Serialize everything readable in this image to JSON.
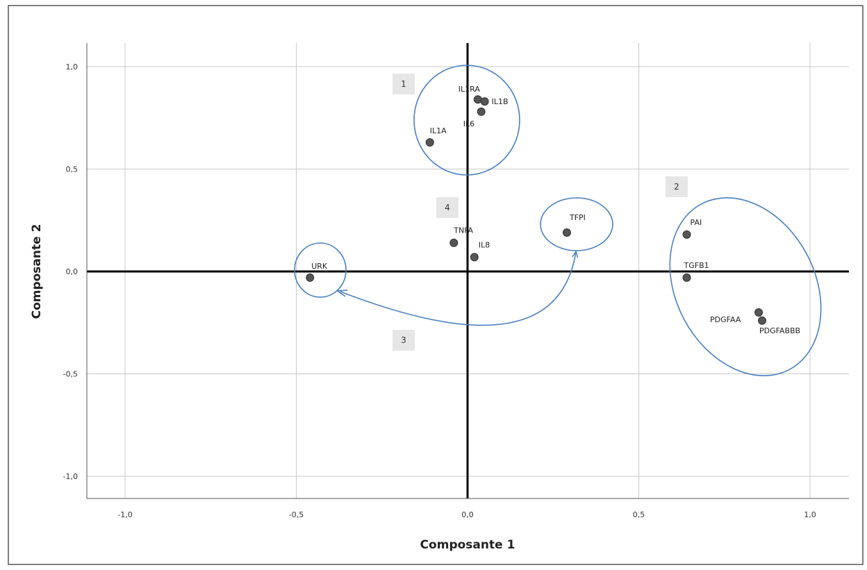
{
  "chart_data": {
    "type": "scatter",
    "title": "",
    "xlabel": "Composante 1",
    "ylabel": "Composante 2",
    "xlim": [
      -1.1,
      1.1
    ],
    "ylim": [
      -1.1,
      1.1
    ],
    "x_ticks": [
      -1.0,
      -0.5,
      0.0,
      0.5,
      1.0
    ],
    "y_ticks": [
      -1.0,
      -0.5,
      0.0,
      0.5,
      1.0
    ],
    "x_tick_labels": [
      "-1,0",
      "-0,5",
      "0,0",
      "0,5",
      "1,0"
    ],
    "y_tick_labels": [
      "-1,0",
      "-0,5",
      "0,0",
      "0,5",
      "1,0"
    ],
    "grid": true,
    "points": [
      {
        "label": "IL1RA",
        "x": 0.03,
        "y": 0.84
      },
      {
        "label": "IL1B",
        "x": 0.05,
        "y": 0.83
      },
      {
        "label": "IL6",
        "x": 0.04,
        "y": 0.78
      },
      {
        "label": "IL1A",
        "x": -0.11,
        "y": 0.63
      },
      {
        "label": "TNFA",
        "x": -0.04,
        "y": 0.14
      },
      {
        "label": "IL8",
        "x": 0.02,
        "y": 0.07
      },
      {
        "label": "TFPI",
        "x": 0.29,
        "y": 0.19
      },
      {
        "label": "URK",
        "x": -0.46,
        "y": -0.03
      },
      {
        "label": "PAI",
        "x": 0.64,
        "y": 0.18
      },
      {
        "label": "TGFB1",
        "x": 0.64,
        "y": -0.03
      },
      {
        "label": "PDGFAA",
        "x": 0.85,
        "y": -0.2
      },
      {
        "label": "PDGFABBB",
        "x": 0.86,
        "y": -0.24
      }
    ],
    "annotations": [
      "1",
      "2",
      "3",
      "4"
    ],
    "colors": {
      "point": "#555555",
      "cluster_outline": "#4a7fc1",
      "grid": "#c8c8c8",
      "axis": "#000000",
      "annotation_box": "#e6e6e6"
    }
  }
}
